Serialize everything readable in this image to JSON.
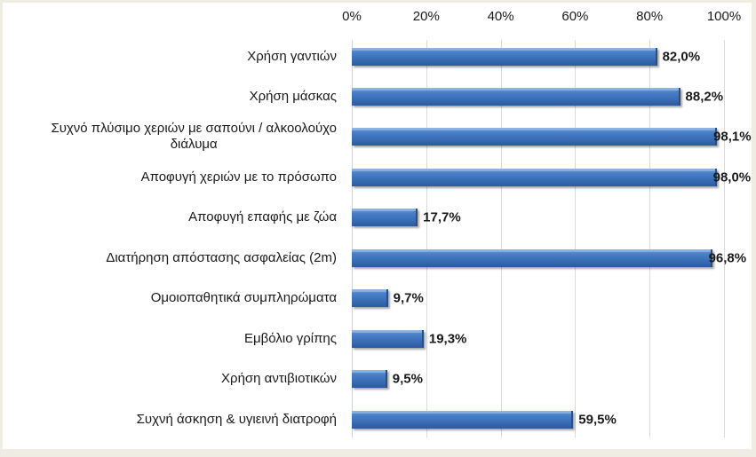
{
  "chart_data": {
    "type": "bar",
    "orientation": "horizontal",
    "title": "",
    "xlabel": "",
    "ylabel": "",
    "xlim": [
      0,
      100
    ],
    "x_axis_position": "top",
    "x_ticks": [
      "0%",
      "20%",
      "40%",
      "60%",
      "80%",
      "100%"
    ],
    "grid": true,
    "legend": null,
    "categories": [
      "Χρήση γαντιών",
      "Χρήση μάσκας",
      "Συχνό πλύσιμο χεριών με σαπούνι / αλκοολούχο διάλυμα",
      "Αποφυγή χεριών με το πρόσωπο",
      "Αποφυγή επαφής με ζώα",
      "Διατήρηση απόστασης ασφαλείας (2m)",
      "Ομοιοπαθητικά συμπληρώματα",
      "Εμβόλιο γρίπης",
      "Χρήση αντιβιοτικών",
      "Συχνή άσκηση & υγιεινή διατροφή"
    ],
    "values": [
      82.0,
      88.2,
      98.1,
      98.0,
      17.7,
      96.8,
      9.7,
      19.3,
      9.5,
      59.5
    ],
    "value_labels": [
      "82,0%",
      "88,2%",
      "98,1%",
      "98,0%",
      "17,7%",
      "96,8%",
      "9,7%",
      "19,3%",
      "9,5%",
      "59,5%"
    ],
    "bar_color": "#3a6fb8"
  },
  "axis": {
    "ticks": [
      {
        "label": "0%",
        "pct": 0
      },
      {
        "label": "20%",
        "pct": 20
      },
      {
        "label": "40%",
        "pct": 40
      },
      {
        "label": "60%",
        "pct": 60
      },
      {
        "label": "80%",
        "pct": 80
      },
      {
        "label": "100%",
        "pct": 100
      }
    ]
  },
  "rows": [
    {
      "label_line1": "Χρήση γαντιών",
      "label_line2": "",
      "value": 82.0,
      "value_label": "82,0%"
    },
    {
      "label_line1": "Χρήση μάσκας",
      "label_line2": "",
      "value": 88.2,
      "value_label": "88,2%"
    },
    {
      "label_line1": "Συχνό πλύσιμο χεριών με σαπούνι / αλκοολούχο",
      "label_line2": "διάλυμα",
      "value": 98.1,
      "value_label": "98,1%"
    },
    {
      "label_line1": "Αποφυγή χεριών με το πρόσωπο",
      "label_line2": "",
      "value": 98.0,
      "value_label": "98,0%"
    },
    {
      "label_line1": "Αποφυγή επαφής με ζώα",
      "label_line2": "",
      "value": 17.7,
      "value_label": "17,7%"
    },
    {
      "label_line1": "Διατήρηση απόστασης ασφαλείας (2m)",
      "label_line2": "",
      "value": 96.8,
      "value_label": "96,8%"
    },
    {
      "label_line1": "Ομοιοπαθητικά συμπληρώματα",
      "label_line2": "",
      "value": 9.7,
      "value_label": "9,7%"
    },
    {
      "label_line1": "Εμβόλιο γρίπης",
      "label_line2": "",
      "value": 19.3,
      "value_label": "19,3%"
    },
    {
      "label_line1": "Χρήση αντιβιοτικών",
      "label_line2": "",
      "value": 9.5,
      "value_label": "9,5%"
    },
    {
      "label_line1": "Συχνή άσκηση & υγιεινή διατροφή",
      "label_line2": "",
      "value": 59.5,
      "value_label": "59,5%"
    }
  ]
}
